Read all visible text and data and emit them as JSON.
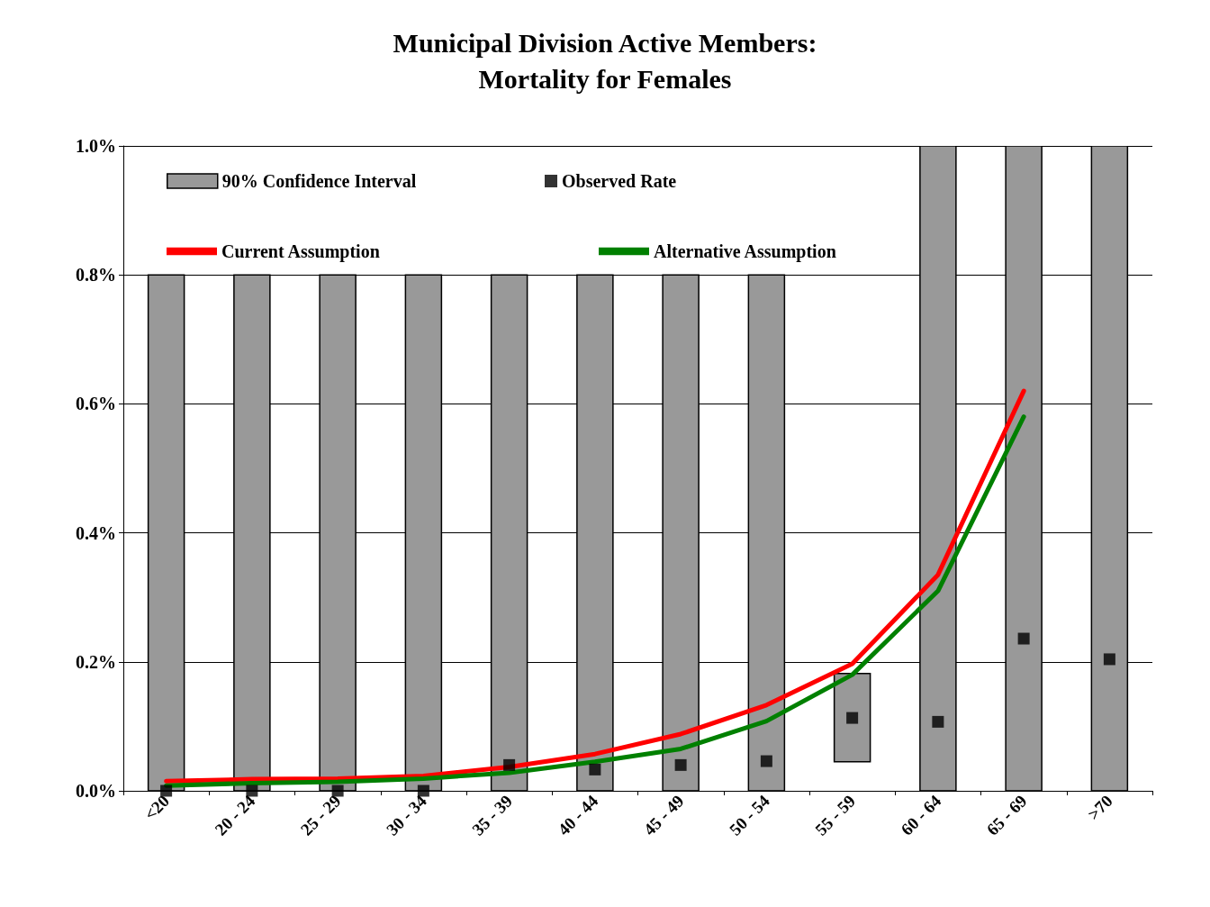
{
  "chart_data": {
    "type": "bar",
    "title": "Municipal Division Active Members:\nMortality for Females",
    "categories": [
      "<20",
      "20 - 24",
      "25 - 29",
      "30 - 34",
      "35 - 39",
      "40 - 44",
      "45 - 49",
      "50 - 54",
      "55 - 59",
      "60 - 64",
      "65 - 69",
      ">70"
    ],
    "series": [
      {
        "name": "90% Confidence Interval",
        "color": "#999999",
        "base": [
          0,
          0,
          0,
          0,
          0,
          0,
          0,
          0,
          0.045,
          0,
          0,
          0
        ],
        "values": [
          0.8,
          0.8,
          0.8,
          0.8,
          0.8,
          0.8,
          0.8,
          0.8,
          0.137,
          1.0,
          1.0,
          1.0
        ]
      },
      {
        "type": "scatter",
        "name": "Observed Rate",
        "color": "#000000",
        "marker": "square",
        "values": [
          0,
          0,
          0,
          0,
          0.04,
          0.033,
          0.04,
          0.046,
          0.113,
          0.107,
          0.236,
          0.204
        ]
      },
      {
        "type": "line",
        "name": "Current Assumption",
        "color": "#ff0000",
        "marker": "none",
        "values": [
          0.015,
          0.018,
          0.019,
          0.023,
          0.037,
          0.057,
          0.088,
          0.133,
          0.197,
          0.335,
          0.62,
          null
        ]
      },
      {
        "type": "line",
        "name": "Alternative Assumption",
        "color": "#008000",
        "marker": "none",
        "values": [
          0.008,
          0.012,
          0.014,
          0.019,
          0.028,
          0.045,
          0.065,
          0.108,
          0.18,
          0.31,
          0.58,
          null
        ]
      }
    ],
    "ylim": [
      0,
      1.0
    ],
    "yticks": [
      {
        "value": 0,
        "label": "0.0%"
      },
      {
        "value": 0.2,
        "label": "0.2%"
      },
      {
        "value": 0.4,
        "label": "0.4%"
      },
      {
        "value": 0.6,
        "label": "0.6%"
      },
      {
        "value": 0.8,
        "label": "0.8%"
      },
      {
        "value": 1.0,
        "label": "1.0%"
      }
    ],
    "grid": "y",
    "legend": "top left"
  }
}
